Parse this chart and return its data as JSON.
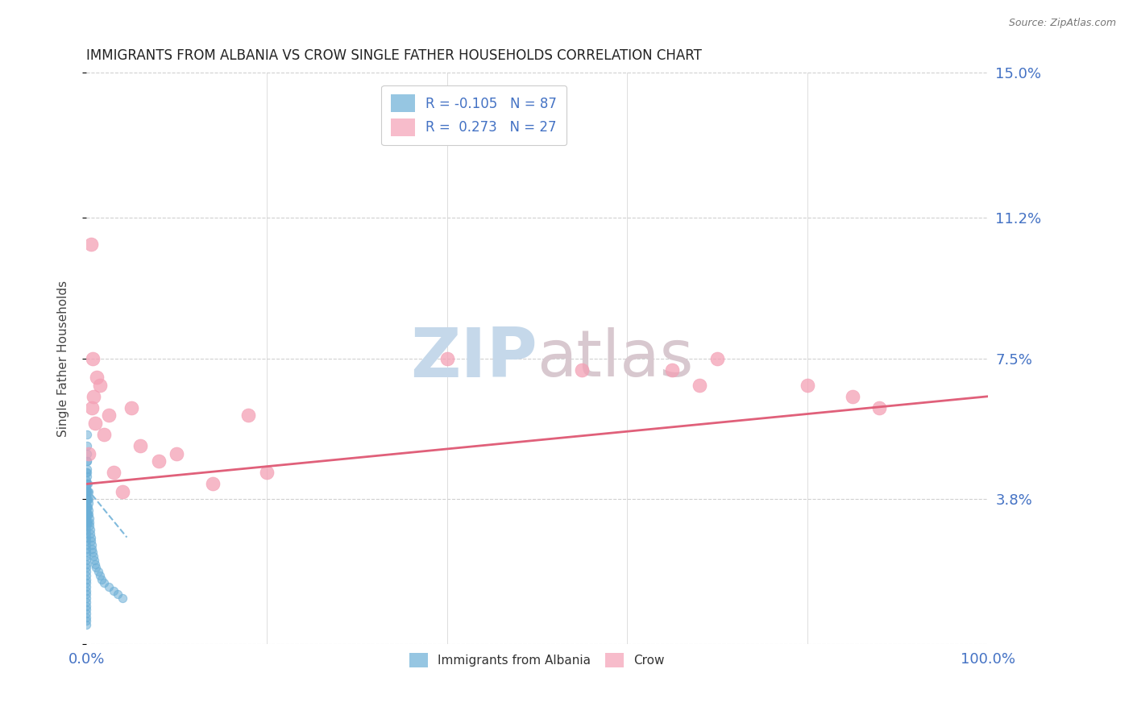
{
  "title": "IMMIGRANTS FROM ALBANIA VS CROW SINGLE FATHER HOUSEHOLDS CORRELATION CHART",
  "source_text": "Source: ZipAtlas.com",
  "ylabel": "Single Father Households",
  "xlim": [
    0,
    100
  ],
  "ylim": [
    0,
    15
  ],
  "yticks": [
    0,
    3.8,
    7.5,
    11.2,
    15.0
  ],
  "ytick_labels": [
    "",
    "3.8%",
    "7.5%",
    "11.2%",
    "15.0%"
  ],
  "xtick_labels": [
    "0.0%",
    "100.0%"
  ],
  "xtick_positions": [
    0,
    100
  ],
  "legend_line1": "R = -0.105   N = 87",
  "legend_line2": "R =  0.273   N = 27",
  "albania_scatter_x": [
    0.0,
    0.0,
    0.0,
    0.0,
    0.0,
    0.0,
    0.0,
    0.0,
    0.0,
    0.0,
    0.0,
    0.0,
    0.0,
    0.0,
    0.0,
    0.0,
    0.0,
    0.0,
    0.0,
    0.0,
    0.0,
    0.0,
    0.0,
    0.0,
    0.0,
    0.0,
    0.0,
    0.0,
    0.0,
    0.0,
    0.0,
    0.0,
    0.0,
    0.0,
    0.0,
    0.0,
    0.0,
    0.0,
    0.0,
    0.0,
    0.05,
    0.05,
    0.05,
    0.05,
    0.05,
    0.06,
    0.07,
    0.08,
    0.08,
    0.09,
    0.1,
    0.1,
    0.1,
    0.12,
    0.13,
    0.14,
    0.15,
    0.16,
    0.18,
    0.2,
    0.22,
    0.24,
    0.25,
    0.28,
    0.3,
    0.32,
    0.35,
    0.38,
    0.4,
    0.45,
    0.5,
    0.55,
    0.6,
    0.65,
    0.7,
    0.8,
    0.9,
    1.0,
    1.1,
    1.3,
    1.5,
    1.7,
    2.0,
    2.5,
    3.0,
    3.5,
    4.0
  ],
  "albania_scatter_y": [
    4.5,
    4.3,
    4.2,
    4.1,
    4.0,
    3.9,
    3.8,
    3.7,
    3.6,
    3.5,
    3.4,
    3.3,
    3.2,
    3.1,
    3.0,
    2.9,
    2.8,
    2.7,
    2.6,
    2.5,
    2.4,
    2.3,
    2.2,
    2.1,
    2.0,
    1.9,
    1.8,
    1.7,
    1.6,
    1.5,
    1.4,
    1.3,
    1.2,
    1.1,
    1.0,
    0.9,
    0.8,
    0.7,
    0.6,
    0.5,
    5.5,
    5.2,
    4.8,
    4.5,
    4.2,
    4.0,
    3.8,
    3.6,
    3.4,
    3.2,
    5.0,
    4.8,
    4.6,
    4.4,
    4.2,
    4.0,
    3.8,
    3.6,
    3.4,
    3.2,
    4.0,
    3.8,
    3.7,
    3.5,
    3.4,
    3.3,
    3.2,
    3.1,
    3.0,
    2.9,
    2.8,
    2.7,
    2.6,
    2.5,
    2.4,
    2.3,
    2.2,
    2.1,
    2.0,
    1.9,
    1.8,
    1.7,
    1.6,
    1.5,
    1.4,
    1.3,
    1.2
  ],
  "crow_scatter_x": [
    0.3,
    0.5,
    0.6,
    0.7,
    0.8,
    1.0,
    1.2,
    1.5,
    2.0,
    2.5,
    3.0,
    4.0,
    5.0,
    6.0,
    8.0,
    10.0,
    14.0,
    18.0,
    20.0,
    40.0,
    55.0,
    65.0,
    68.0,
    70.0,
    80.0,
    85.0,
    88.0
  ],
  "crow_scatter_y": [
    5.0,
    10.5,
    6.2,
    7.5,
    6.5,
    5.8,
    7.0,
    6.8,
    5.5,
    6.0,
    4.5,
    4.0,
    6.2,
    5.2,
    4.8,
    5.0,
    4.2,
    6.0,
    4.5,
    7.5,
    7.2,
    7.2,
    6.8,
    7.5,
    6.8,
    6.5,
    6.2
  ],
  "albania_line_x": [
    0,
    4.5
  ],
  "albania_line_y": [
    4.1,
    2.8
  ],
  "crow_line_x": [
    0,
    100
  ],
  "crow_line_y": [
    4.2,
    6.5
  ],
  "albania_color": "#6aaed6",
  "crow_color": "#f4a0b5",
  "albania_line_color": "#6aaed6",
  "crow_line_color": "#e0607a",
  "grid_color": "#d0d0d0",
  "background_color": "#ffffff",
  "watermark_zip_color": "#c5d8ea",
  "watermark_atlas_color": "#d8c8cf"
}
